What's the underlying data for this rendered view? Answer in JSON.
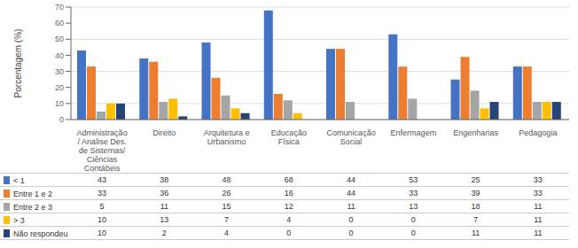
{
  "chart_data": {
    "type": "bar",
    "categories": [
      "Administração\n/ Analise Des.\nde Sistemas/\nCiências\nContábeis",
      "Direito",
      "Arquitetura e\nUrbanismo",
      "Educação\nFísica",
      "Comunicação\nSocial",
      "Enfermagem",
      "Engenharias",
      "Pedagogia"
    ],
    "series": [
      {
        "name": "< 1",
        "color": "#4472C4",
        "values": [
          43,
          38,
          48,
          68,
          44,
          53,
          25,
          33
        ]
      },
      {
        "name": "Entre 1 e 2",
        "color": "#ED7D31",
        "values": [
          33,
          36,
          26,
          16,
          44,
          33,
          39,
          33
        ]
      },
      {
        "name": "Entre 2 e 3",
        "color": "#A5A5A5",
        "values": [
          5,
          11,
          15,
          12,
          11,
          13,
          18,
          11
        ]
      },
      {
        "name": "> 3",
        "color": "#FFC000",
        "values": [
          10,
          13,
          7,
          4,
          0,
          0,
          7,
          11
        ]
      },
      {
        "name": "Não respondeu",
        "color": "#264478",
        "values": [
          10,
          2,
          4,
          0,
          0,
          0,
          11,
          11
        ]
      }
    ],
    "ylabel": "Porcentagem (%)",
    "ylim": [
      0,
      70
    ],
    "yticks": [
      0,
      10,
      20,
      30,
      40,
      50,
      60,
      70
    ],
    "grid": true
  }
}
